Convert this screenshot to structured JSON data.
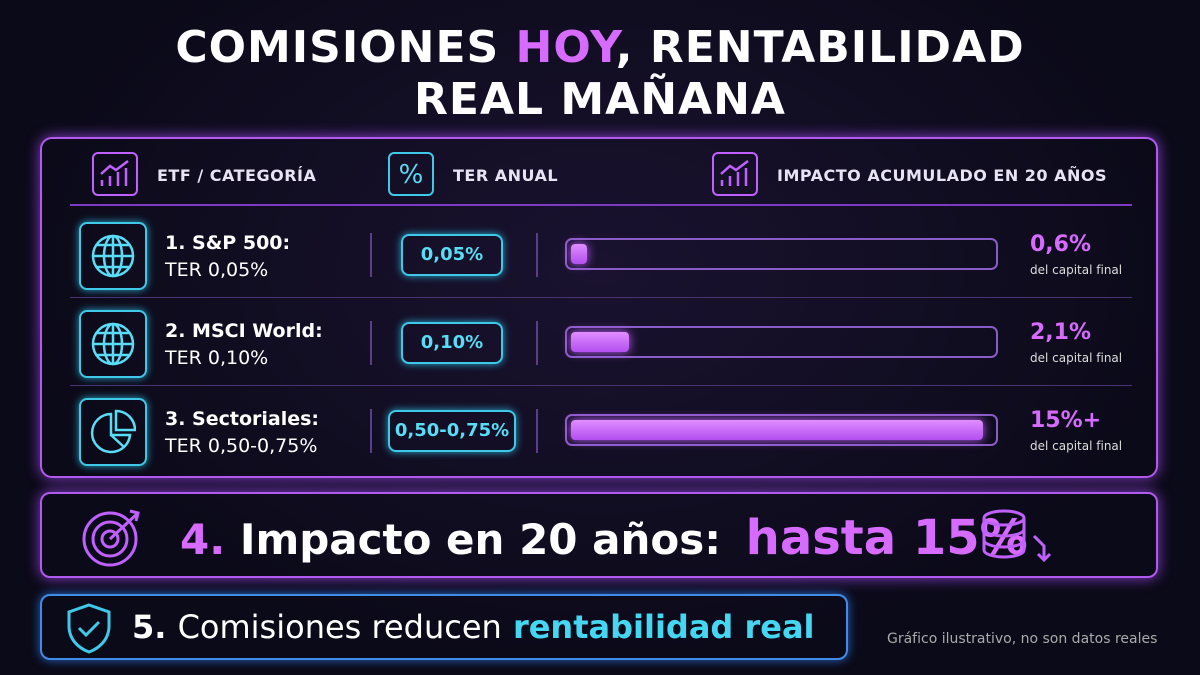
{
  "header": {
    "title_parts": [
      "COMISIONES",
      "HOY",
      ", RENTABILIDAD",
      "REAL MAÑANA"
    ]
  },
  "table": {
    "columns": [
      "ETF / CATEGORÍA",
      "TER ANUAL",
      "IMPACTO ACUMULADO EN 20 AÑOS"
    ],
    "rows": [
      {
        "name": "1. S&P 500:",
        "ter_text": "TER 0,05%",
        "ter": "0,05%",
        "impact": 0.6,
        "impact_label": "0,6%",
        "impact_note": "del capital final"
      },
      {
        "name": "2. MSCI World:",
        "ter_text": "TER 0,10%",
        "ter": "0,10%",
        "impact": 2.1,
        "impact_label": "2,1%",
        "impact_note": "del capital final"
      },
      {
        "name": "3. Sectoriales:",
        "ter_text": "TER 0,50-0,75%",
        "ter": "0,50-0,75%",
        "impact": 15,
        "impact_label": "15%+",
        "impact_note": "del capital final"
      }
    ]
  },
  "callouts": [
    {
      "number": "4.",
      "text": "Impacto en 20 años:",
      "highlight": "hasta 15%"
    },
    {
      "number": "5.",
      "text": "Comisiones reducen",
      "highlight": "rentabilidad real"
    }
  ],
  "footnote": "Gráfico ilustrativo, no son datos reales"
}
